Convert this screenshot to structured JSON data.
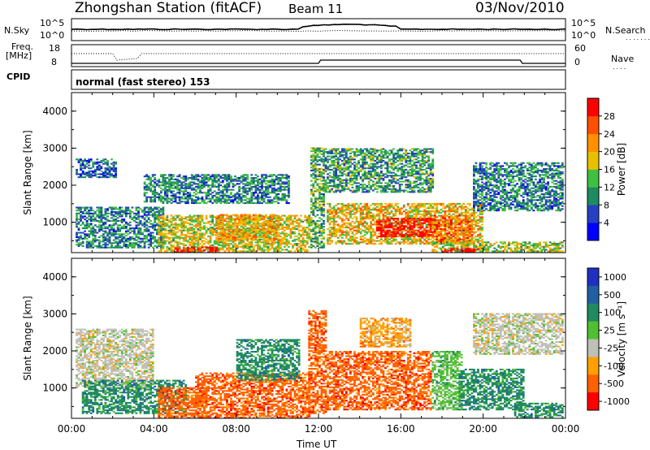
{
  "header": {
    "station": "Zhongshan Station (fitACF)",
    "beam": "Beam 11",
    "date": "03/Nov/2010"
  },
  "top_panels": {
    "nsky_label": "N.Sky",
    "nsearch_label": "N.Search",
    "freq_label_1": "Freq.",
    "freq_label_2": "[MHz]",
    "nave_label": "Nave",
    "cpid_label": "CPID",
    "mode_text": "normal (fast stereo) 153",
    "noise_ticks": [
      "10^5",
      "10^0"
    ],
    "freq_ticks": [
      "18",
      "8"
    ],
    "nave_ticks": [
      "60",
      "0"
    ]
  },
  "chart_data": [
    {
      "type": "heatmap",
      "name": "power",
      "xlabel": "Time UT",
      "ylabel": "Slant Range [km]",
      "x_ticks": [
        "00:00",
        "04:00",
        "08:00",
        "12:00",
        "16:00",
        "20:00",
        "00:00"
      ],
      "y_ticks": [
        "1000",
        "2000",
        "3000",
        "4000"
      ],
      "ylim": [
        180,
        4500
      ],
      "colorbar_label": "Power [dB]",
      "colorbar_ticks": [
        "4",
        "8",
        "12",
        "16",
        "20",
        "24",
        "28"
      ],
      "colorbar_range": [
        0,
        32
      ],
      "colors": [
        "#0000ff",
        "#2540c0",
        "#208a60",
        "#40c040",
        "#e8c000",
        "#ff9000",
        "#ff5000",
        "#ff0000"
      ],
      "regions": [
        {
          "t0": 0.2,
          "t1": 4.5,
          "r0": 300,
          "r1": 1400,
          "level": 0.3
        },
        {
          "t0": 0.2,
          "t1": 2.2,
          "r0": 2200,
          "r1": 2700,
          "level": 0.2
        },
        {
          "t0": 3.5,
          "t1": 10.5,
          "r0": 1500,
          "r1": 2300,
          "level": 0.3
        },
        {
          "t0": 4.2,
          "t1": 11.5,
          "r0": 200,
          "r1": 1200,
          "level": 0.55
        },
        {
          "t0": 5.0,
          "t1": 7.0,
          "r0": 180,
          "r1": 330,
          "level": 0.95
        },
        {
          "t0": 7.0,
          "t1": 10.0,
          "r0": 500,
          "r1": 1200,
          "level": 0.65
        },
        {
          "t0": 11.6,
          "t1": 12.2,
          "r0": 300,
          "r1": 3000,
          "level": 0.4
        },
        {
          "t0": 12.2,
          "t1": 17.6,
          "r0": 1800,
          "r1": 3000,
          "level": 0.35
        },
        {
          "t0": 12.4,
          "t1": 20.0,
          "r0": 400,
          "r1": 1500,
          "level": 0.6
        },
        {
          "t0": 14.8,
          "t1": 17.8,
          "r0": 600,
          "r1": 1100,
          "level": 0.95
        },
        {
          "t0": 17.5,
          "t1": 19.5,
          "r0": 400,
          "r1": 1200,
          "level": 0.75
        },
        {
          "t0": 19.5,
          "t1": 23.9,
          "r0": 1300,
          "r1": 2600,
          "level": 0.3
        },
        {
          "t0": 17.5,
          "t1": 23.9,
          "r0": 200,
          "r1": 450,
          "level": 0.5
        },
        {
          "t0": 18.0,
          "t1": 19.8,
          "r0": 180,
          "r1": 300,
          "level": 0.95
        }
      ]
    },
    {
      "type": "heatmap",
      "name": "velocity",
      "xlabel": "Time UT",
      "ylabel": "Slant Range [km]",
      "x_ticks": [
        "00:00",
        "04:00",
        "08:00",
        "12:00",
        "16:00",
        "20:00",
        "00:00"
      ],
      "y_ticks": [
        "1000",
        "2000",
        "3000",
        "4000"
      ],
      "ylim": [
        180,
        4500
      ],
      "colorbar_label": "Velocity [m s⁻¹]",
      "colorbar_ticks": [
        "1000",
        "500",
        "100",
        "25",
        "-25",
        "-100",
        "-500",
        "-1000"
      ],
      "colors": [
        "#2030c0",
        "#2060a0",
        "#208a60",
        "#50c030",
        "#c0c0b8",
        "#ffa000",
        "#ff6000",
        "#ff0000"
      ],
      "regions": [
        {
          "t0": 0.2,
          "t1": 4.0,
          "r0": 1000,
          "r1": 2600,
          "level": 4
        },
        {
          "t0": 0.5,
          "t1": 5.5,
          "r0": 300,
          "r1": 1200,
          "level": 2
        },
        {
          "t0": 4.2,
          "t1": 6.5,
          "r0": 180,
          "r1": 1000,
          "level": 6
        },
        {
          "t0": 6.0,
          "t1": 11.5,
          "r0": 180,
          "r1": 1400,
          "level": 6
        },
        {
          "t0": 8.0,
          "t1": 11.0,
          "r0": 1200,
          "r1": 2300,
          "level": 2
        },
        {
          "t0": 11.5,
          "t1": 12.3,
          "r0": 300,
          "r1": 3100,
          "level": 6
        },
        {
          "t0": 12.4,
          "t1": 17.5,
          "r0": 400,
          "r1": 2000,
          "level": 6
        },
        {
          "t0": 14.0,
          "t1": 16.5,
          "r0": 2100,
          "r1": 2900,
          "level": 5
        },
        {
          "t0": 17.5,
          "t1": 19.0,
          "r0": 400,
          "r1": 2000,
          "level": 3
        },
        {
          "t0": 18.8,
          "t1": 22.0,
          "r0": 400,
          "r1": 1500,
          "level": 2
        },
        {
          "t0": 19.5,
          "t1": 23.9,
          "r0": 1900,
          "r1": 3000,
          "level": 4
        },
        {
          "t0": 21.5,
          "t1": 23.9,
          "r0": 200,
          "r1": 600,
          "level": 2
        }
      ]
    }
  ]
}
